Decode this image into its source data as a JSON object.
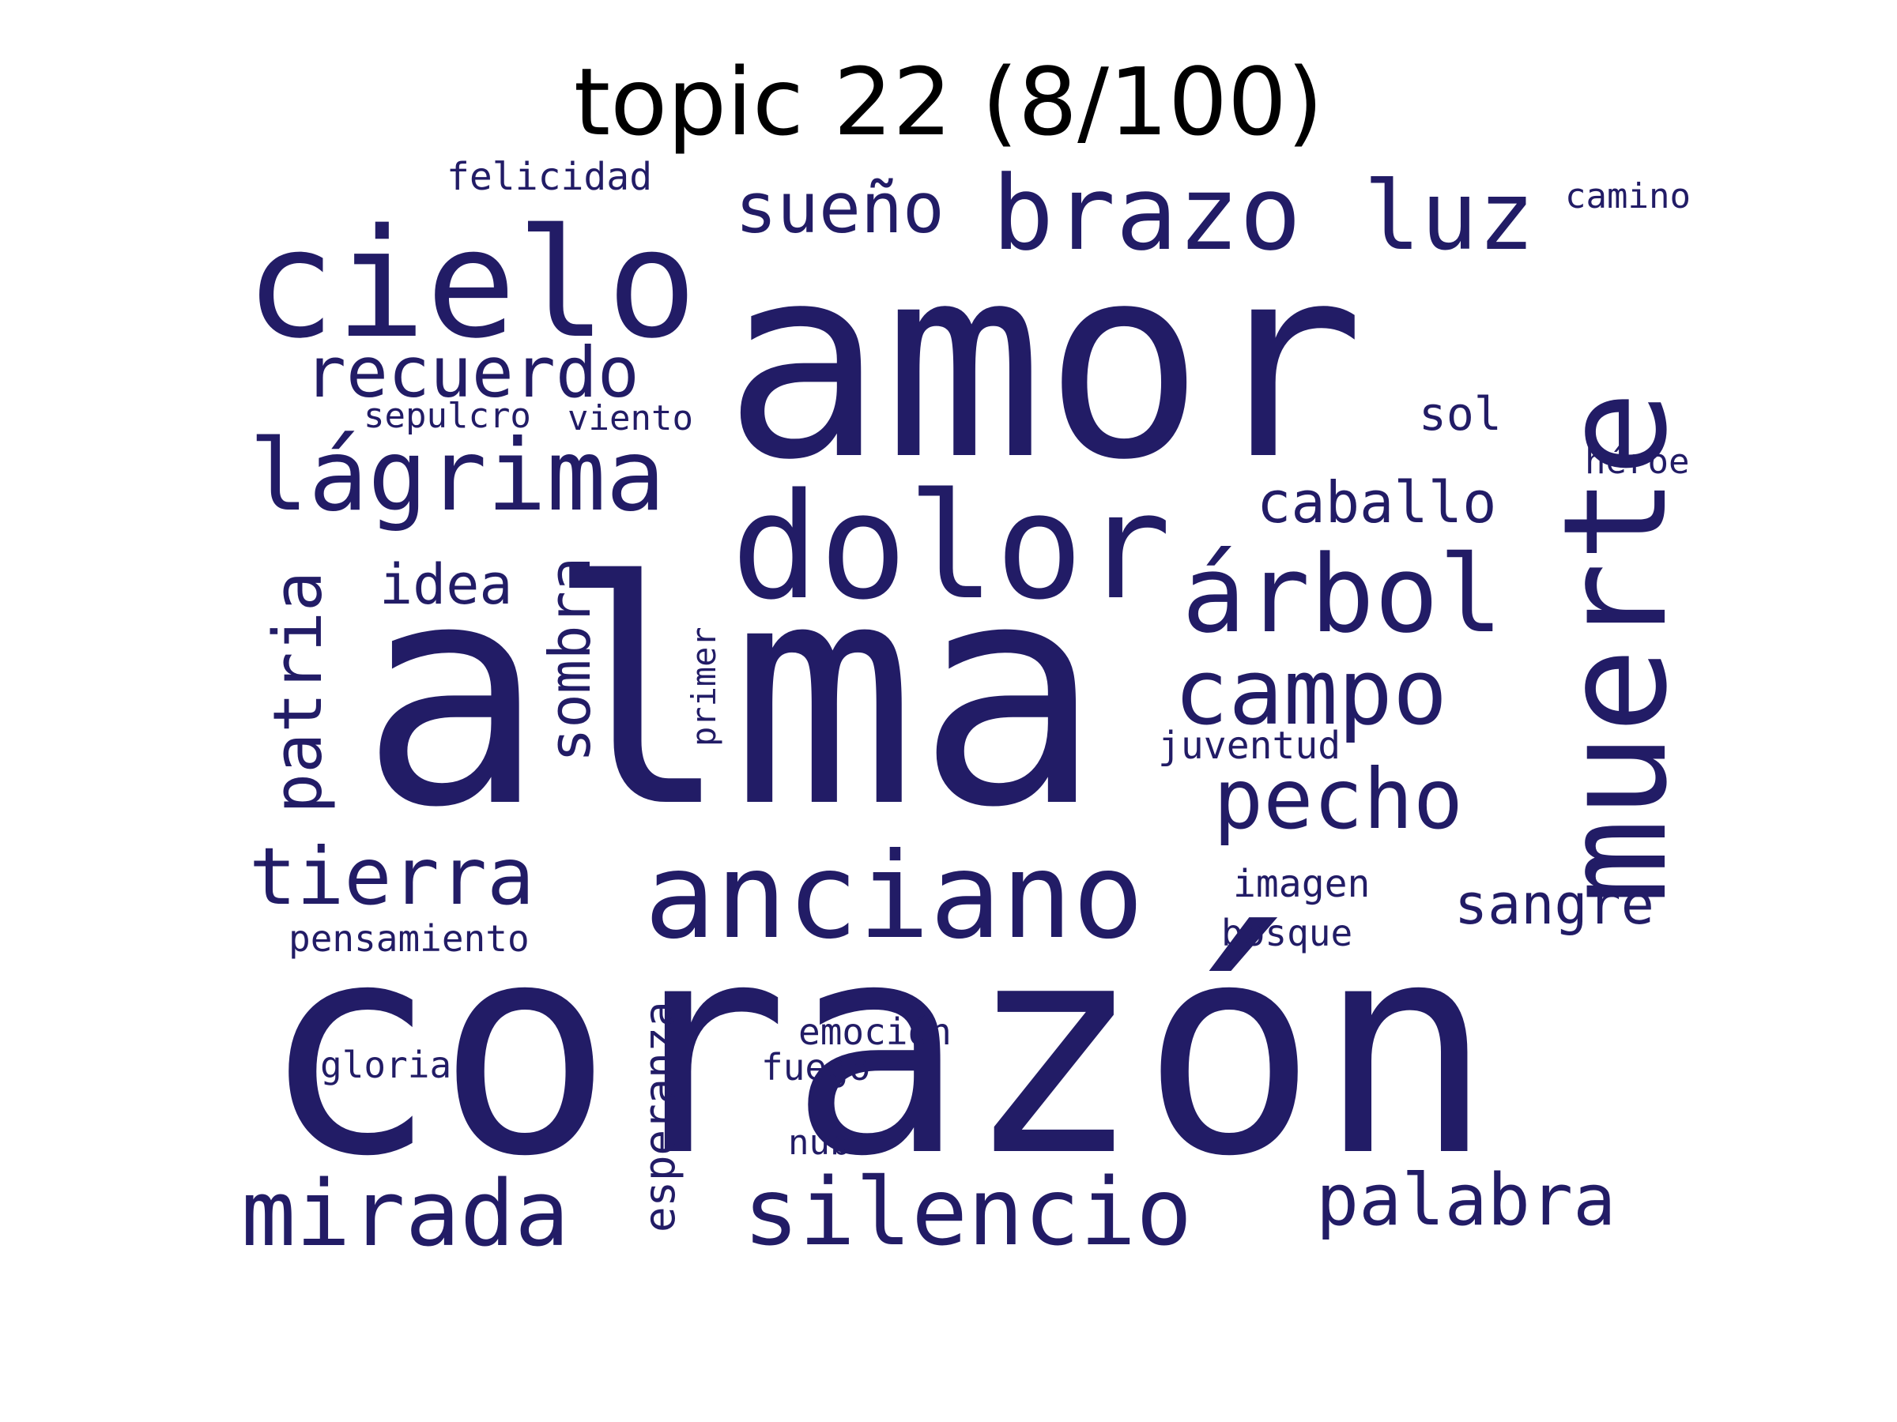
{
  "title": "topic 22 (8/100)",
  "colors": {
    "word": "#221c66",
    "title": "#000000",
    "background": "#ffffff"
  },
  "words": [
    "amor",
    "corazón",
    "alma",
    "muerte",
    "cielo",
    "dolor",
    "anciano",
    "brazo",
    "lágrima",
    "silencio",
    "árbol",
    "recuerdo",
    "mirada",
    "campo",
    "luz",
    "pecho",
    "tierra",
    "palabra",
    "sueño",
    "patria",
    "caballo",
    "sombra",
    "sangre",
    "esperanza",
    "idea",
    "sol",
    "felicidad",
    "camino",
    "sepulcro",
    "viento",
    "héroe",
    "primer",
    "juventud",
    "imagen",
    "bosque",
    "pensamiento",
    "emoción",
    "gloria",
    "fuego",
    "nube"
  ]
}
